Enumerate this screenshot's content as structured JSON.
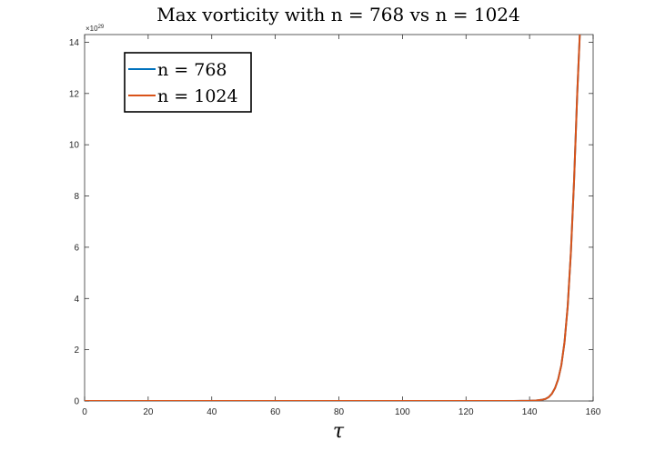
{
  "chart_data": {
    "type": "line",
    "title": "Max vorticity with n = 768 vs n = 1024",
    "xlabel": "τ",
    "ylabel": "",
    "xlim": [
      0,
      160
    ],
    "ylim": [
      0,
      14.3
    ],
    "y_exponent_label": "×10^29",
    "x_ticks": [
      "0",
      "20",
      "40",
      "60",
      "80",
      "100",
      "120",
      "140",
      "160"
    ],
    "y_ticks": [
      "0",
      "2",
      "4",
      "6",
      "8",
      "10",
      "12",
      "14"
    ],
    "grid": false,
    "legend_position": "top-left",
    "series": [
      {
        "name": "n = 768",
        "color": "#0072BD",
        "x": [
          0,
          20,
          40,
          60,
          80,
          100,
          120,
          135,
          140,
          142,
          144,
          145,
          146,
          147,
          148,
          149,
          150,
          151,
          152,
          153,
          154,
          155,
          155.8
        ],
        "y": [
          0,
          0,
          0,
          0,
          0,
          0,
          0,
          0,
          0.01,
          0.02,
          0.05,
          0.08,
          0.15,
          0.28,
          0.5,
          0.85,
          1.4,
          2.3,
          3.7,
          5.8,
          8.6,
          12.0,
          14.3
        ]
      },
      {
        "name": "n = 1024",
        "color": "#D95319",
        "x": [
          0,
          20,
          40,
          60,
          80,
          100,
          120,
          135,
          140,
          142,
          144,
          145,
          146,
          147,
          148,
          149,
          150,
          151,
          152,
          153,
          154,
          155,
          155.8
        ],
        "y": [
          0,
          0,
          0,
          0,
          0,
          0,
          0,
          0,
          0.01,
          0.02,
          0.05,
          0.08,
          0.15,
          0.28,
          0.5,
          0.85,
          1.4,
          2.3,
          3.7,
          5.8,
          8.6,
          12.0,
          14.3
        ]
      }
    ]
  }
}
